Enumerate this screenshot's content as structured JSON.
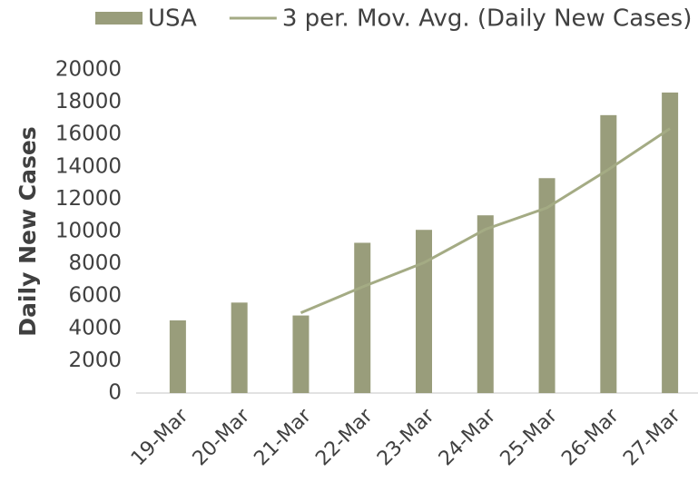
{
  "chart_data": {
    "type": "bar",
    "y_axis_label": "Daily New Cases",
    "categories": [
      "19-Mar",
      "20-Mar",
      "21-Mar",
      "22-Mar",
      "23-Mar",
      "24-Mar",
      "25-Mar",
      "26-Mar",
      "27-Mar"
    ],
    "series": [
      {
        "name": "USA",
        "type": "bar",
        "color": "#999d7b",
        "values": [
          4500,
          5600,
          4800,
          9300,
          10100,
          11000,
          13300,
          17200,
          18600
        ]
      },
      {
        "name": "3 per. Mov. Avg. (Daily New Cases)",
        "type": "line",
        "color": "#a4ab84",
        "values": [
          null,
          null,
          4967,
          6567,
          8067,
          10133,
          11467,
          13833,
          16367
        ]
      }
    ],
    "ylim": [
      0,
      20000
    ],
    "yticks": [
      0,
      2000,
      4000,
      6000,
      8000,
      10000,
      12000,
      14000,
      16000,
      18000,
      20000
    ],
    "grid": false,
    "legend": "top"
  }
}
